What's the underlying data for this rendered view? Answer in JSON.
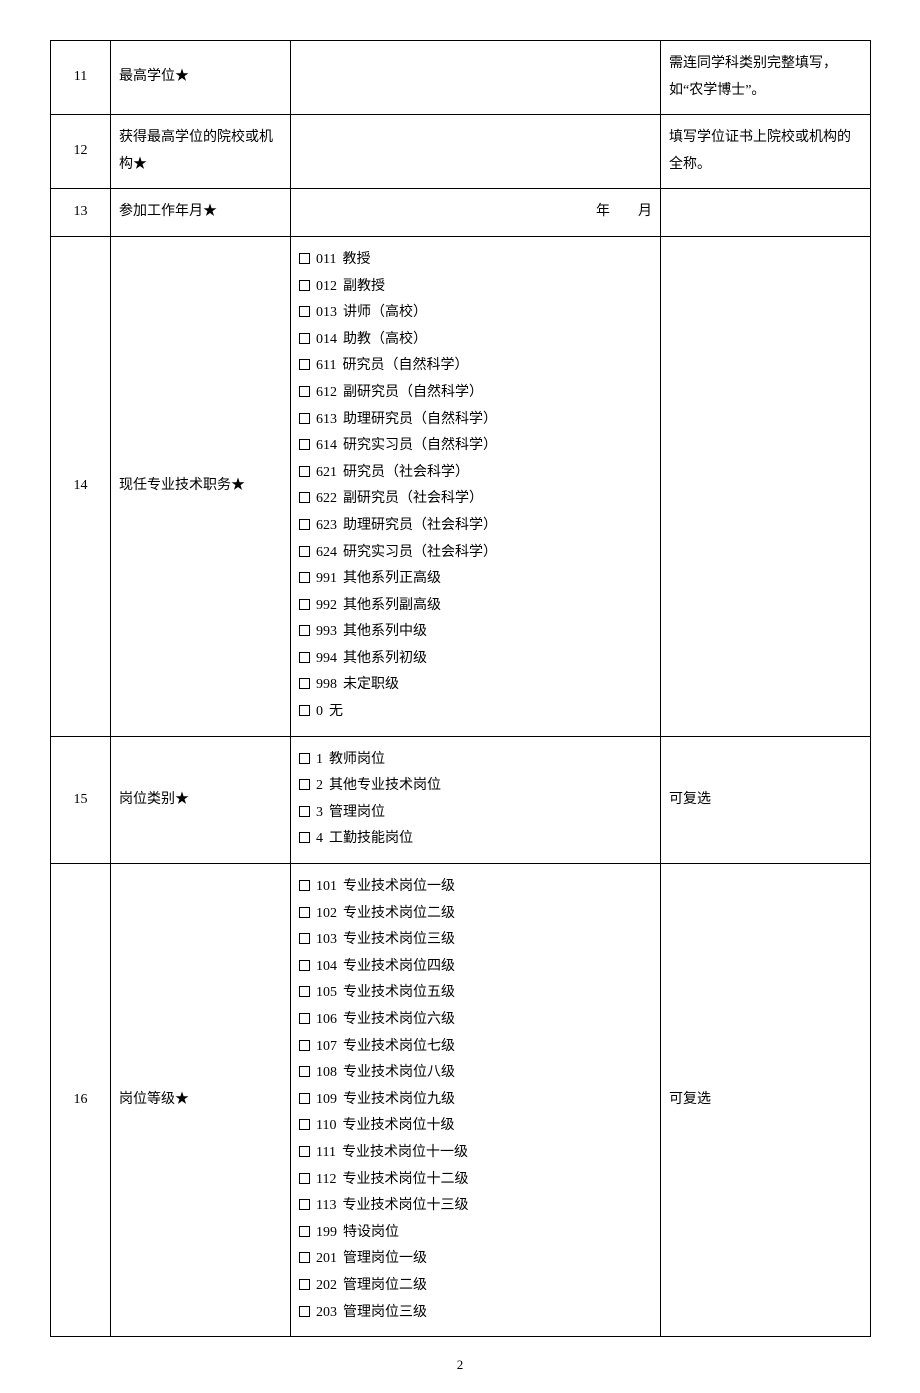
{
  "rows": [
    {
      "n": "11",
      "label": "最高学位★",
      "mid_type": "blank",
      "note": "需连同学科类别完整填写，如“农学博士”。"
    },
    {
      "n": "12",
      "label": "获得最高学位的院校或机构★",
      "mid_type": "blank",
      "note": "填写学位证书上院校或机构的全称。"
    },
    {
      "n": "13",
      "label": "参加工作年月★",
      "mid_type": "date",
      "date_text": "年　　月",
      "note": ""
    },
    {
      "n": "14",
      "label": "现任专业技术职务★",
      "mid_type": "options",
      "options": [
        {
          "code": "011",
          "text": "教授"
        },
        {
          "code": "012",
          "text": "副教授"
        },
        {
          "code": "013",
          "text": "讲师（高校）"
        },
        {
          "code": "014",
          "text": "助教（高校）"
        },
        {
          "code": "611",
          "text": "研究员（自然科学）"
        },
        {
          "code": "612",
          "text": "副研究员（自然科学）"
        },
        {
          "code": "613",
          "text": "助理研究员（自然科学）"
        },
        {
          "code": "614",
          "text": "研究实习员（自然科学）"
        },
        {
          "code": "621",
          "text": "研究员（社会科学）"
        },
        {
          "code": "622",
          "text": "副研究员（社会科学）"
        },
        {
          "code": "623",
          "text": "助理研究员（社会科学）"
        },
        {
          "code": "624",
          "text": "研究实习员（社会科学）"
        },
        {
          "code": "991",
          "text": "其他系列正高级"
        },
        {
          "code": "992",
          "text": "其他系列副高级"
        },
        {
          "code": "993",
          "text": "其他系列中级"
        },
        {
          "code": "994",
          "text": "其他系列初级"
        },
        {
          "code": "998",
          "text": "未定职级"
        },
        {
          "code": "0",
          "text": "无"
        }
      ],
      "note": ""
    },
    {
      "n": "15",
      "label": "岗位类别★",
      "mid_type": "options",
      "options": [
        {
          "code": "1",
          "text": "教师岗位"
        },
        {
          "code": "2",
          "text": "其他专业技术岗位"
        },
        {
          "code": "3",
          "text": "管理岗位"
        },
        {
          "code": "4",
          "text": "工勤技能岗位"
        }
      ],
      "note": "可复选"
    },
    {
      "n": "16",
      "label": "岗位等级★",
      "mid_type": "options",
      "options": [
        {
          "code": "101",
          "text": "专业技术岗位一级"
        },
        {
          "code": "102",
          "text": "专业技术岗位二级"
        },
        {
          "code": "103",
          "text": "专业技术岗位三级"
        },
        {
          "code": "104",
          "text": "专业技术岗位四级"
        },
        {
          "code": "105",
          "text": "专业技术岗位五级"
        },
        {
          "code": "106",
          "text": "专业技术岗位六级"
        },
        {
          "code": "107",
          "text": "专业技术岗位七级"
        },
        {
          "code": "108",
          "text": "专业技术岗位八级"
        },
        {
          "code": "109",
          "text": "专业技术岗位九级"
        },
        {
          "code": "110",
          "text": "专业技术岗位十级"
        },
        {
          "code": "111",
          "text": "专业技术岗位十一级"
        },
        {
          "code": "112",
          "text": "专业技术岗位十二级"
        },
        {
          "code": "113",
          "text": "专业技术岗位十三级"
        },
        {
          "code": "199",
          "text": "特设岗位"
        },
        {
          "code": "201",
          "text": "管理岗位一级"
        },
        {
          "code": "202",
          "text": "管理岗位二级"
        },
        {
          "code": "203",
          "text": "管理岗位三级"
        }
      ],
      "note": "可复选"
    }
  ],
  "page_number": "2"
}
